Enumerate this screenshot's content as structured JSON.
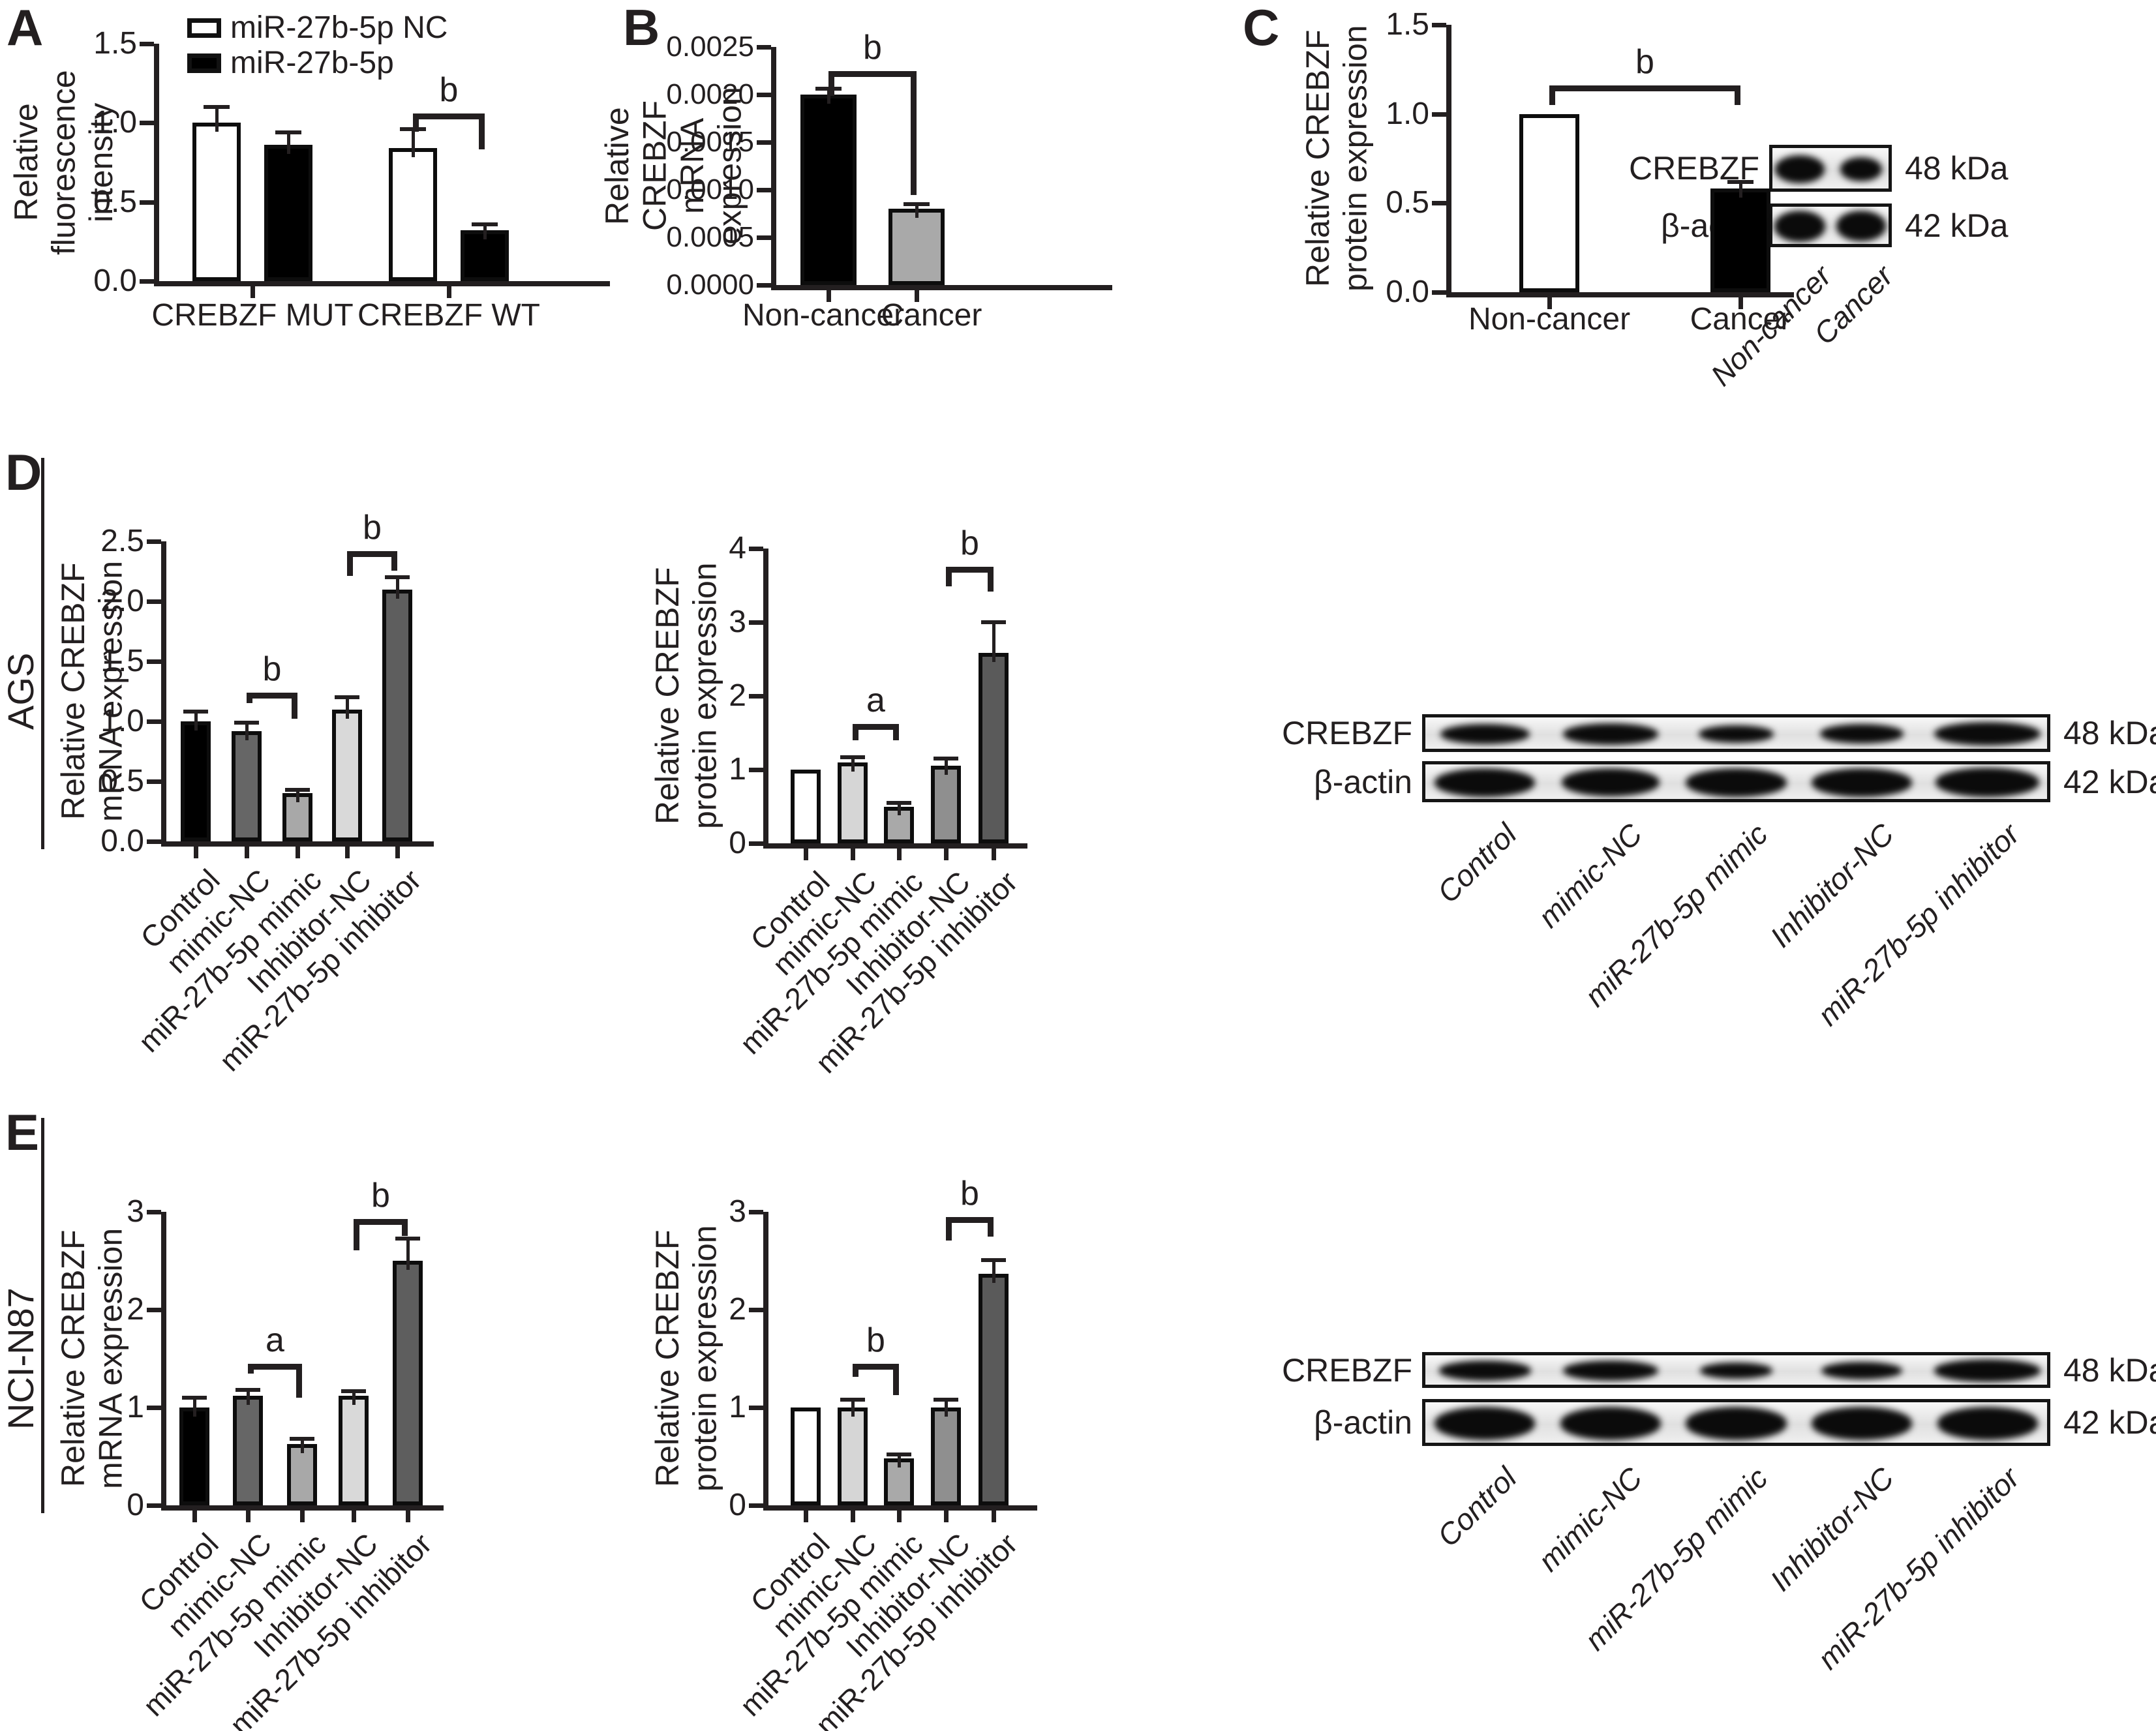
{
  "figure": {
    "panels": [
      {
        "id": "A",
        "letter": "A"
      },
      {
        "id": "B",
        "letter": "B"
      },
      {
        "id": "C",
        "letter": "C"
      },
      {
        "id": "D",
        "letter": "D",
        "group_label": "AGS"
      },
      {
        "id": "E",
        "letter": "E",
        "group_label": "NCI-N87"
      }
    ]
  },
  "chart_data": [
    {
      "id": "A",
      "type": "bar",
      "panel": "A",
      "ylabel": "Relative fluorescence\nintensity",
      "ylim": [
        0,
        1.5
      ],
      "yticks": [
        "0.0",
        "0.5",
        "1.0",
        "1.5"
      ],
      "categories": [
        "CREBZF MUT",
        "CREBZF WT"
      ],
      "series": [
        {
          "name": "miR-27b-5p NC",
          "color": "#ffffff",
          "values": [
            1.0,
            0.84
          ],
          "errors": [
            0.1,
            0.12
          ]
        },
        {
          "name": "miR-27b-5p",
          "color": "#000000",
          "values": [
            0.86,
            0.32
          ],
          "errors": [
            0.08,
            0.04
          ]
        }
      ],
      "legend_position": "top-left",
      "annotations": [
        {
          "text": "b",
          "from": 2,
          "to": 3,
          "y": 1.06
        }
      ]
    },
    {
      "id": "B",
      "type": "bar",
      "panel": "B",
      "ylabel": "Relative CREBZF\nmRNA expression",
      "ylim": [
        0,
        0.0025
      ],
      "yticks": [
        "0.0000",
        "0.0005",
        "0.0010",
        "0.0015",
        "0.0020",
        "0.0025"
      ],
      "categories": [
        "Non-cancer",
        "Cancer"
      ],
      "values": [
        0.002,
        0.0008
      ],
      "errors": [
        6e-05,
        5e-05
      ],
      "colors": [
        "#000000",
        "#a9a9a9"
      ],
      "annotations": [
        {
          "text": "b",
          "from": 0,
          "to": 1,
          "y": 0.00225
        }
      ]
    },
    {
      "id": "C",
      "type": "bar",
      "panel": "C",
      "ylabel": "Relative CREBZF\nprotein expression",
      "ylim": [
        0,
        1.5
      ],
      "yticks": [
        "0.0",
        "0.5",
        "1.0",
        "1.5"
      ],
      "categories": [
        "Non-cancer",
        "Cancer"
      ],
      "values": [
        1.0,
        0.58
      ],
      "errors": [
        0,
        0.04
      ],
      "colors": [
        "#ffffff",
        "#000000"
      ],
      "annotations": [
        {
          "text": "b",
          "from": 0,
          "to": 1,
          "y": 1.16
        }
      ]
    },
    {
      "id": "D_mRNA",
      "type": "bar",
      "panel": "D",
      "cell_line": "AGS",
      "ylabel": "Relative CREBZF mRNA expression",
      "ylim": [
        0,
        2.5
      ],
      "yticks": [
        "0.0",
        "0.5",
        "1.0",
        "1.5",
        "2.0",
        "2.5"
      ],
      "categories": [
        "Control",
        "mimic-NC",
        "miR-27b-5p mimic",
        "Inhibitor-NC",
        "miR-27b-5p inhibitor"
      ],
      "values": [
        1.0,
        0.92,
        0.4,
        1.1,
        2.1
      ],
      "errors": [
        0.08,
        0.07,
        0.03,
        0.1,
        0.1
      ],
      "colors": [
        "#000000",
        "#666666",
        "#a8a8a8",
        "#d9d9d9",
        "#5e5e5e"
      ],
      "annotations": [
        {
          "text": "b",
          "from": 1,
          "to": 2,
          "y": 1.24
        },
        {
          "text": "b",
          "from": 3,
          "to": 4,
          "y": 2.42
        }
      ]
    },
    {
      "id": "D_protein",
      "type": "bar",
      "panel": "D",
      "cell_line": "AGS",
      "ylabel": "Relative CREBZF\nprotein expression",
      "ylim": [
        0,
        4
      ],
      "yticks": [
        "0",
        "1",
        "2",
        "3",
        "4"
      ],
      "categories": [
        "Control",
        "mimic-NC",
        "miR-27b-5p mimic",
        "Inhibitor-NC",
        "miR-27b-5p inhibitor"
      ],
      "values": [
        1.0,
        1.1,
        0.5,
        1.05,
        2.58
      ],
      "errors": [
        0,
        0.07,
        0.05,
        0.1,
        0.42
      ],
      "colors": [
        "#ffffff",
        "#d6d6d6",
        "#a9a9a9",
        "#8f8f8f",
        "#5a5a5a"
      ],
      "annotations": [
        {
          "text": "a",
          "from": 1,
          "to": 2,
          "y": 1.62
        },
        {
          "text": "b",
          "from": 3,
          "to": 4,
          "y": 3.75
        }
      ]
    },
    {
      "id": "E_mRNA",
      "type": "bar",
      "panel": "E",
      "cell_line": "NCI-N87",
      "ylabel": "Relative CREBZF mRNA expression",
      "ylim": [
        0,
        3
      ],
      "yticks": [
        "0",
        "1",
        "2",
        "3"
      ],
      "categories": [
        "Control",
        "mimic-NC",
        "miR-27b-5p mimic",
        "Inhibitor-NC",
        "miR-27b-5p inhibitor"
      ],
      "values": [
        1.0,
        1.12,
        0.63,
        1.12,
        2.5
      ],
      "errors": [
        0.1,
        0.06,
        0.05,
        0.05,
        0.23
      ],
      "colors": [
        "#000000",
        "#666666",
        "#a8a8a8",
        "#d9d9d9",
        "#5e5e5e"
      ],
      "annotations": [
        {
          "text": "a",
          "from": 1,
          "to": 2,
          "y": 1.45
        },
        {
          "text": "b",
          "from": 3,
          "to": 4,
          "y": 2.93
        }
      ]
    },
    {
      "id": "E_protein",
      "type": "bar",
      "panel": "E",
      "cell_line": "NCI-N87",
      "ylabel": "Relative CREBZF\nprotein expression",
      "ylim": [
        0,
        3
      ],
      "yticks": [
        "0",
        "1",
        "2",
        "3"
      ],
      "categories": [
        "Control",
        "mimic-NC",
        "miR-27b-5p mimic",
        "Inhibitor-NC",
        "miR-27b-5p inhibitor"
      ],
      "values": [
        1.0,
        1.0,
        0.48,
        1.0,
        2.37
      ],
      "errors": [
        0,
        0.08,
        0.04,
        0.08,
        0.14
      ],
      "colors": [
        "#ffffff",
        "#d6d6d6",
        "#a9a9a9",
        "#8f8f8f",
        "#5a5a5a"
      ],
      "annotations": [
        {
          "text": "b",
          "from": 1,
          "to": 2,
          "y": 1.45
        },
        {
          "text": "b",
          "from": 3,
          "to": 4,
          "y": 2.95
        }
      ]
    }
  ],
  "blots": [
    {
      "id": "blot_C",
      "lanes": [
        "Non-cancer",
        "Cancer"
      ],
      "rows": [
        {
          "label": "CREBZF",
          "kda": "48 kDa",
          "bands": [
            1.0,
            0.72
          ]
        },
        {
          "label": "β-actin",
          "kda": "42 kDa",
          "bands": [
            1.05,
            1.0
          ]
        }
      ]
    },
    {
      "id": "blot_D",
      "lanes": [
        "Control",
        "mimic-NC",
        "miR-27b-5p mimic",
        "Inhibitor-NC",
        "miR-27b-5p inhibitor"
      ],
      "rows": [
        {
          "label": "CREBZF",
          "kda": "48 kDa",
          "bands": [
            0.8,
            0.9,
            0.55,
            0.7,
            1.1
          ]
        },
        {
          "label": "β-actin",
          "kda": "42 kDa",
          "bands": [
            1.0,
            0.95,
            1.0,
            1.0,
            1.05
          ]
        }
      ]
    },
    {
      "id": "blot_E",
      "lanes": [
        "Control",
        "mimic-NC",
        "miR-27b-5p mimic",
        "Inhibitor-NC",
        "miR-27b-5p inhibitor"
      ],
      "rows": [
        {
          "label": "CREBZF",
          "kda": "48 kDa",
          "bands": [
            0.85,
            0.9,
            0.5,
            0.65,
            1.1
          ]
        },
        {
          "label": "β-actin",
          "kda": "42 kDa",
          "bands": [
            1.0,
            1.0,
            1.0,
            1.0,
            1.0
          ]
        }
      ]
    }
  ]
}
